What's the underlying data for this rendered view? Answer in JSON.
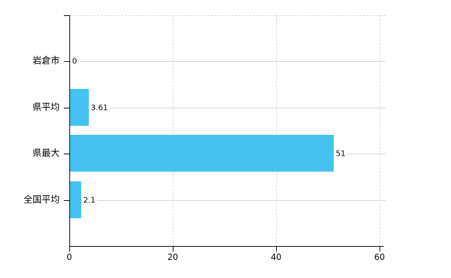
{
  "chart_data": {
    "type": "bar",
    "orientation": "horizontal",
    "title": "",
    "xlabel": "",
    "ylabel": "",
    "categories": [
      "岩倉市",
      "県平均",
      "県最大",
      "全国平均"
    ],
    "values": [
      0,
      3.61,
      51,
      2.1
    ],
    "value_labels": [
      "0",
      "3.61",
      "51",
      "2.1"
    ],
    "x_ticks": [
      0,
      20,
      40,
      60
    ],
    "x_tick_labels": [
      "0",
      "20",
      "40",
      "60"
    ],
    "xlim": [
      0,
      60
    ],
    "grid": true,
    "legend": false,
    "bar_color": "#45c2f0",
    "grid_solid_color": "#d4d4d4",
    "grid_dashed_color": "#d8d8d8",
    "axis_color": "#000000",
    "text_color": "#000000",
    "background_color": "#ffffff"
  }
}
